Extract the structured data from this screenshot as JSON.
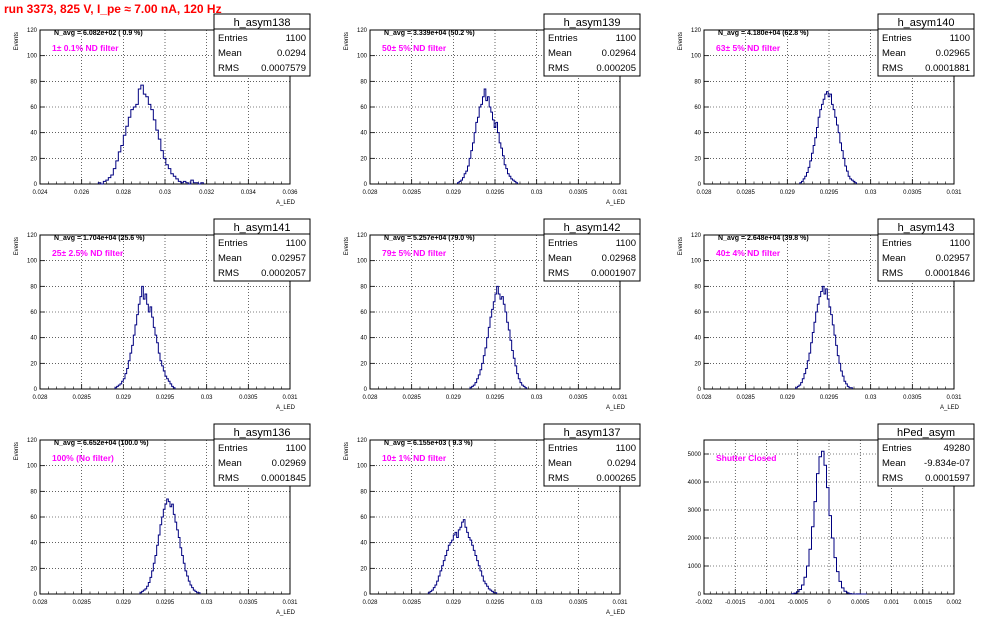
{
  "page_title": "run 3373,   825 V, I_pe ≈ 7.00 nA, 120 Hz",
  "chart_data": [
    {
      "type": "histogram",
      "histname": "h_asym138",
      "stats": {
        "entries": "1100",
        "mean": "0.0294",
        "rms": "0.0007579"
      },
      "navg": "N_avg = 6.082e+02 ( 0.9 %)",
      "label": "1± 0.1% ND filter",
      "xlabel": "A_LED",
      "ylabel": "Events",
      "xlim": [
        0.024,
        0.036
      ],
      "ylim": [
        0,
        120
      ],
      "xticks": [
        0.024,
        0.026,
        0.028,
        0.03,
        0.032,
        0.034,
        0.036
      ],
      "xticklabels": [
        "0.024",
        "0.026",
        "0.028",
        "0.03",
        "0.032",
        "0.034",
        "0.036"
      ],
      "yticks": [
        0,
        20,
        40,
        60,
        80,
        100,
        120
      ],
      "yticklabels": [
        "0",
        "20",
        "40",
        "60",
        "80",
        "100",
        "120"
      ],
      "hist": {
        "x0": 0.0268,
        "dx": 0.00012,
        "values": [
          1,
          0,
          2,
          3,
          5,
          7,
          12,
          18,
          25,
          30,
          38,
          45,
          52,
          58,
          60,
          62,
          74,
          77,
          70,
          68,
          62,
          58,
          50,
          42,
          35,
          26,
          20,
          15,
          12,
          8,
          6,
          4,
          2,
          1,
          2,
          1,
          0,
          3,
          1,
          1,
          0,
          1
        ]
      }
    },
    {
      "type": "histogram",
      "histname": "h_asym139",
      "stats": {
        "entries": "1100",
        "mean": "0.02964",
        "rms": "0.000205"
      },
      "navg": "N_avg = 3.339e+04 (50.2 %)",
      "label": "50± 5% ND filter",
      "xlabel": "A_LED",
      "ylabel": "Events",
      "xlim": [
        0.028,
        0.031
      ],
      "ylim": [
        0,
        120
      ],
      "xticks": [
        0.028,
        0.0285,
        0.029,
        0.0295,
        0.03,
        0.0305,
        0.031
      ],
      "xticklabels": [
        "0.028",
        "0.0285",
        "0.029",
        "0.0295",
        "0.03",
        "0.0305",
        "0.031"
      ],
      "yticks": [
        0,
        20,
        40,
        60,
        80,
        100,
        120
      ],
      "yticklabels": [
        "0",
        "20",
        "40",
        "60",
        "80",
        "100",
        "120"
      ],
      "hist": {
        "x0": 0.02905,
        "dx": 2e-05,
        "values": [
          1,
          2,
          3,
          5,
          8,
          10,
          14,
          20,
          26,
          32,
          40,
          48,
          52,
          60,
          62,
          68,
          74,
          65,
          68,
          60,
          56,
          50,
          44,
          48,
          40,
          32,
          28,
          22,
          15,
          12,
          8,
          6,
          4,
          3,
          2,
          1
        ]
      }
    },
    {
      "type": "histogram",
      "histname": "h_asym140",
      "stats": {
        "entries": "1100",
        "mean": "0.02965",
        "rms": "0.0001881"
      },
      "navg": "N_avg = 4.180e+04 (62.8 %)",
      "label": "63± 5% ND filter",
      "xlabel": "",
      "ylabel": "Events",
      "xlim": [
        0.028,
        0.031
      ],
      "ylim": [
        0,
        120
      ],
      "xticks": [
        0.028,
        0.0285,
        0.029,
        0.0295,
        0.03,
        0.0305,
        0.031
      ],
      "xticklabels": [
        "0.028",
        "0.0285",
        "0.029",
        "0.0295",
        "0.03",
        "0.0305",
        "0.031"
      ],
      "yticks": [
        0,
        20,
        40,
        60,
        80,
        100,
        120
      ],
      "yticklabels": [
        "0",
        "20",
        "40",
        "60",
        "80",
        "100",
        "120"
      ],
      "hist": {
        "x0": 0.02915,
        "dx": 2e-05,
        "values": [
          1,
          2,
          4,
          6,
          9,
          13,
          18,
          24,
          30,
          36,
          44,
          52,
          58,
          62,
          66,
          70,
          72,
          68,
          70,
          62,
          58,
          52,
          46,
          40,
          32,
          26,
          20,
          14,
          10,
          6,
          4,
          3,
          2,
          1
        ]
      }
    },
    {
      "type": "histogram",
      "histname": "h_asym141",
      "stats": {
        "entries": "1100",
        "mean": "0.02957",
        "rms": "0.0002057"
      },
      "navg": "N_avg = 1.704e+04 (25.6 %)",
      "label": "25± 2.5% ND filter",
      "xlabel": "A_LED",
      "ylabel": "Events",
      "xlim": [
        0.028,
        0.031
      ],
      "ylim": [
        0,
        120
      ],
      "xticks": [
        0.028,
        0.0285,
        0.029,
        0.0295,
        0.03,
        0.0305,
        0.031
      ],
      "xticklabels": [
        "0.028",
        "0.0285",
        "0.029",
        "0.0295",
        "0.03",
        "0.0305",
        "0.031"
      ],
      "yticks": [
        0,
        20,
        40,
        60,
        80,
        100,
        120
      ],
      "yticklabels": [
        "0",
        "20",
        "40",
        "60",
        "80",
        "100",
        "120"
      ],
      "hist": {
        "x0": 0.0289,
        "dx": 2e-05,
        "values": [
          1,
          2,
          3,
          4,
          6,
          8,
          12,
          16,
          22,
          28,
          34,
          42,
          50,
          58,
          66,
          72,
          80,
          70,
          74,
          66,
          60,
          64,
          56,
          48,
          42,
          36,
          28,
          22,
          18,
          14,
          10,
          8,
          6,
          4,
          2,
          1
        ]
      }
    },
    {
      "type": "histogram",
      "histname": "h_asym142",
      "stats": {
        "entries": "1100",
        "mean": "0.02968",
        "rms": "0.0001907"
      },
      "navg": "N_avg = 5.257e+04 (79.0 %)",
      "label": "79± 5% ND filter",
      "xlabel": "A_LED",
      "ylabel": "Events",
      "xlim": [
        0.028,
        0.031
      ],
      "ylim": [
        0,
        120
      ],
      "xticks": [
        0.028,
        0.0285,
        0.029,
        0.0295,
        0.03,
        0.0305,
        0.031
      ],
      "xticklabels": [
        "0.028",
        "0.0285",
        "0.029",
        "0.0295",
        "0.03",
        "0.0305",
        "0.031"
      ],
      "yticks": [
        0,
        20,
        40,
        60,
        80,
        100,
        120
      ],
      "yticklabels": [
        "0",
        "20",
        "40",
        "60",
        "80",
        "100",
        "120"
      ],
      "hist": {
        "x0": 0.0292,
        "dx": 2e-05,
        "values": [
          1,
          2,
          3,
          5,
          8,
          11,
          15,
          20,
          26,
          32,
          40,
          48,
          56,
          62,
          68,
          74,
          80,
          74,
          70,
          72,
          66,
          60,
          52,
          46,
          38,
          30,
          24,
          18,
          12,
          8,
          5,
          3,
          2,
          1
        ]
      }
    },
    {
      "type": "histogram",
      "histname": "h_asym143",
      "stats": {
        "entries": "1100",
        "mean": "0.02957",
        "rms": "0.0001846"
      },
      "navg": "N_avg = 2.648e+04 (39.8 %)",
      "label": "40± 4% ND filter",
      "xlabel": "A_LED",
      "ylabel": "Events",
      "xlim": [
        0.028,
        0.031
      ],
      "ylim": [
        0,
        120
      ],
      "xticks": [
        0.028,
        0.0285,
        0.029,
        0.0295,
        0.03,
        0.0305,
        0.031
      ],
      "xticklabels": [
        "0.028",
        "0.0285",
        "0.029",
        "0.0295",
        "0.03",
        "0.0305",
        "0.031"
      ],
      "yticks": [
        0,
        20,
        40,
        60,
        80,
        100,
        120
      ],
      "yticklabels": [
        "0",
        "20",
        "40",
        "60",
        "80",
        "100",
        "120"
      ],
      "hist": {
        "x0": 0.0291,
        "dx": 2e-05,
        "values": [
          1,
          2,
          3,
          5,
          8,
          12,
          16,
          22,
          28,
          36,
          44,
          52,
          60,
          66,
          72,
          76,
          80,
          74,
          78,
          70,
          64,
          58,
          50,
          42,
          34,
          26,
          20,
          14,
          10,
          6,
          4,
          2,
          1,
          1
        ]
      }
    },
    {
      "type": "histogram",
      "histname": "h_asym136",
      "stats": {
        "entries": "1100",
        "mean": "0.02969",
        "rms": "0.0001845"
      },
      "navg": "N_avg = 6.652e+04 (100.0 %)",
      "label": "100% (No filter)",
      "xlabel": "A_LED",
      "ylabel": "Events",
      "xlim": [
        0.028,
        0.031
      ],
      "ylim": [
        0,
        120
      ],
      "xticks": [
        0.028,
        0.0285,
        0.029,
        0.0295,
        0.03,
        0.0305,
        0.031
      ],
      "xticklabels": [
        "0.028",
        "0.0285",
        "0.029",
        "0.0295",
        "0.03",
        "0.0305",
        "0.031"
      ],
      "yticks": [
        0,
        20,
        40,
        60,
        80,
        100,
        120
      ],
      "yticklabels": [
        "0",
        "20",
        "40",
        "60",
        "80",
        "100",
        "120"
      ],
      "hist": {
        "x0": 0.0292,
        "dx": 2e-05,
        "values": [
          1,
          2,
          3,
          4,
          6,
          9,
          13,
          18,
          24,
          30,
          38,
          46,
          54,
          60,
          66,
          70,
          74,
          72,
          68,
          70,
          62,
          56,
          50,
          44,
          36,
          30,
          24,
          18,
          14,
          10,
          7,
          5,
          3,
          2,
          1,
          1
        ]
      }
    },
    {
      "type": "histogram",
      "histname": "h_asym137",
      "stats": {
        "entries": "1100",
        "mean": "0.0294",
        "rms": "0.000265"
      },
      "navg": "N_avg = 6.155e+03 ( 9.3 %)",
      "label": "10± 1% ND filter",
      "xlabel": "A_LED",
      "ylabel": "Events",
      "xlim": [
        0.028,
        0.031
      ],
      "ylim": [
        0,
        120
      ],
      "xticks": [
        0.028,
        0.0285,
        0.029,
        0.0295,
        0.03,
        0.0305,
        0.031
      ],
      "xticklabels": [
        "0.028",
        "0.0285",
        "0.029",
        "0.0295",
        "0.03",
        "0.0305",
        "0.031"
      ],
      "yticks": [
        0,
        20,
        40,
        60,
        80,
        100,
        120
      ],
      "yticklabels": [
        "0",
        "20",
        "40",
        "60",
        "80",
        "100",
        "120"
      ],
      "hist": {
        "x0": 0.0287,
        "dx": 2e-05,
        "values": [
          1,
          2,
          3,
          5,
          7,
          10,
          14,
          18,
          22,
          26,
          30,
          34,
          38,
          40,
          42,
          46,
          48,
          44,
          50,
          52,
          56,
          58,
          52,
          48,
          44,
          42,
          38,
          34,
          30,
          26,
          22,
          18,
          14,
          10,
          8,
          6,
          4,
          3,
          2,
          1,
          1
        ]
      }
    },
    {
      "type": "histogram",
      "histname": "hPed_asym",
      "stats": {
        "entries": "49280",
        "mean": "-9.834e-07",
        "rms": "0.0001597"
      },
      "navg": "",
      "label": "Shutter Closed",
      "xlabel": "",
      "ylabel": "",
      "xlim": [
        -0.002,
        0.002
      ],
      "ylim": [
        0,
        5500
      ],
      "xticks": [
        -0.002,
        -0.0015,
        -0.001,
        -0.0005,
        0,
        0.0005,
        0.001,
        0.0015,
        0.002
      ],
      "xticklabels": [
        "-0.002",
        "-0.0015",
        "-0.001",
        "-0.0005",
        "0",
        "0.0005",
        "0.001",
        "0.0015",
        "0.002"
      ],
      "yticks": [
        0,
        1000,
        2000,
        3000,
        4000,
        5000
      ],
      "yticklabels": [
        "0",
        "1000",
        "2000",
        "3000",
        "4000",
        "5000"
      ],
      "hist": {
        "x0": -0.0006,
        "dx": 4e-05,
        "values": [
          10,
          30,
          80,
          160,
          320,
          600,
          1000,
          1600,
          2400,
          3300,
          4300,
          4900,
          5100,
          4600,
          3800,
          2800,
          2000,
          1300,
          800,
          450,
          220,
          100,
          40,
          15,
          5,
          0,
          5,
          0,
          2,
          1
        ]
      }
    }
  ]
}
